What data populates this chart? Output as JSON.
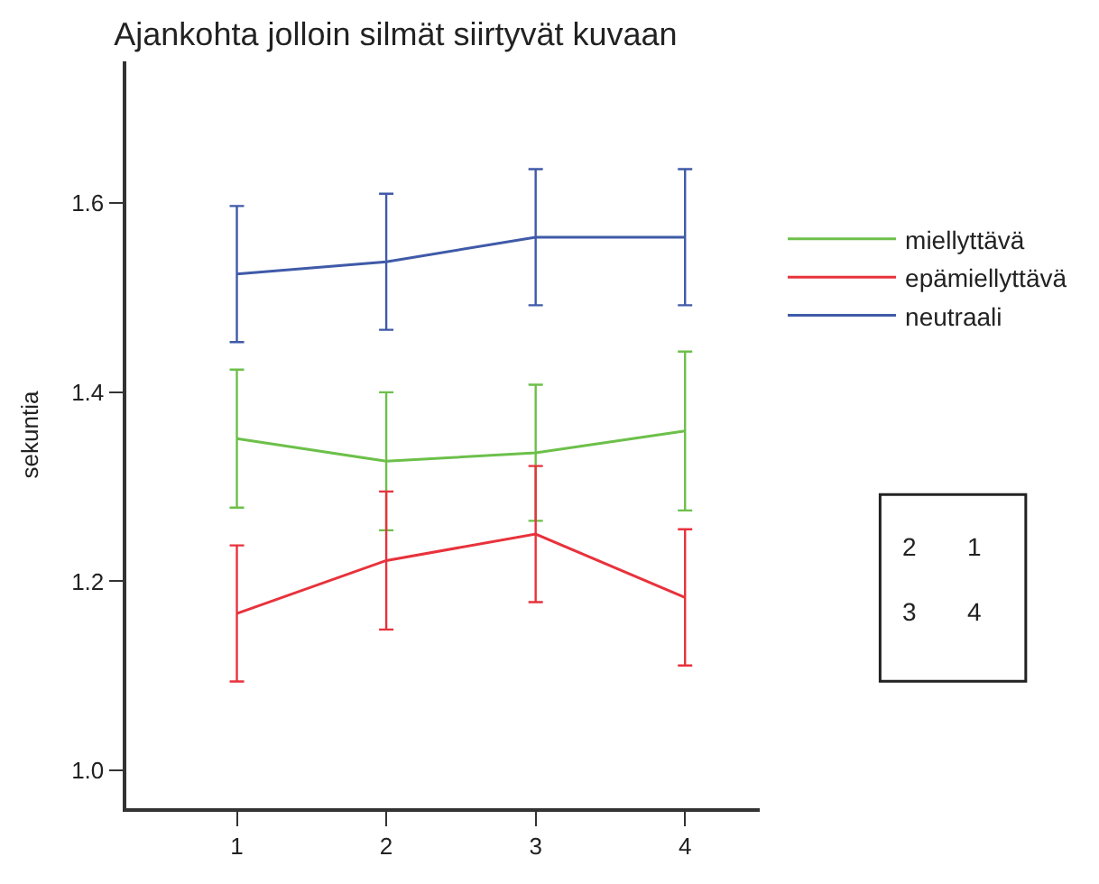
{
  "chart_data": {
    "type": "line",
    "title": "Ajankohta jolloin silmät siirtyvät kuvaan",
    "ylabel": "sekuntia",
    "x": [
      1,
      2,
      3,
      4
    ],
    "series": [
      {
        "name": "miellyttävä",
        "color": "#6cc04a",
        "values": [
          1.351,
          1.327,
          1.336,
          1.359
        ],
        "errors": [
          0.073,
          0.073,
          0.072,
          0.084
        ]
      },
      {
        "name": "epämiellyttävä",
        "color": "#e8323c",
        "values": [
          1.166,
          1.222,
          1.25,
          1.183
        ],
        "errors": [
          0.072,
          0.073,
          0.072,
          0.072
        ]
      },
      {
        "name": "neutraali",
        "color": "#3f5aa8",
        "values": [
          1.525,
          1.538,
          1.564,
          1.564
        ],
        "errors": [
          0.072,
          0.072,
          0.072,
          0.072
        ]
      }
    ],
    "xlim": [
      0.26,
      4.5
    ],
    "xticks": [
      1,
      2,
      3,
      4
    ],
    "ylim": [
      0.96,
      1.75
    ],
    "yticks": [
      {
        "value": 1.0,
        "label": "1.0"
      },
      {
        "value": 1.2,
        "label": "1.2"
      },
      {
        "value": 1.4,
        "label": "1.4"
      },
      {
        "value": 1.6,
        "label": "1.6"
      }
    ],
    "annotations": [
      "2",
      "1",
      "3",
      "4"
    ],
    "legend": "right",
    "marker": "none",
    "line_style": "solid"
  }
}
